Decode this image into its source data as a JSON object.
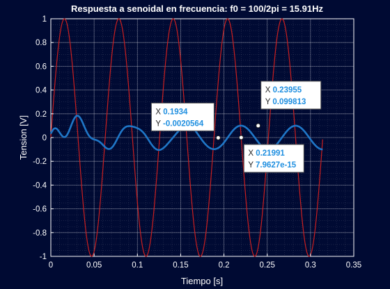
{
  "chart_data": {
    "type": "line",
    "title": "Respuesta a senoidal en frecuencia: f0 = 100/2pi = 15.91Hz",
    "xlabel": "Tiempo [s]",
    "ylabel": "Tension [V]",
    "xlim": [
      0,
      0.35
    ],
    "ylim": [
      -1,
      1
    ],
    "grid": true,
    "minor_grid": true,
    "x_ticks": [
      "0",
      "0.05",
      "0.1",
      "0.15",
      "0.2",
      "0.25",
      "0.3",
      "0.35"
    ],
    "y_ticks": [
      "-1",
      "-0.8",
      "-0.6",
      "-0.4",
      "-0.2",
      "0",
      "0.2",
      "0.4",
      "0.6",
      "0.8",
      "1"
    ],
    "series": [
      {
        "role": "input",
        "color": "#cc1f1f",
        "description_values": "y = sin(100 t), t from 0 to 0.314 s",
        "frequency_rad_s": 100,
        "amplitude": 1,
        "t_end": 0.314
      },
      {
        "role": "response",
        "color": "#1f77c8",
        "description_values": "damped transient settling to a steady oscillation of amplitude ~0.1 (phase lag ~90°)",
        "steady_amplitude": 0.1,
        "t_end": 0.314
      }
    ],
    "datatips": [
      {
        "x_label": "X",
        "x_value": "0.1934",
        "y_label": "Y",
        "y_value": "-0.0020564",
        "x": 0.1934,
        "y": -0.0020564
      },
      {
        "x_label": "X",
        "x_value": "0.21991",
        "y_label": "Y",
        "y_value": "7.9627e-15",
        "x": 0.21991,
        "y": 0.0
      },
      {
        "x_label": "X",
        "x_value": "0.23955",
        "y_label": "Y",
        "y_value": "0.099813",
        "x": 0.23955,
        "y": 0.099813
      }
    ],
    "colors": {
      "background": "#000a33",
      "axes_bg": "#000a33",
      "grid": "#ffffff",
      "tip_value": "#1f8fe0"
    }
  }
}
